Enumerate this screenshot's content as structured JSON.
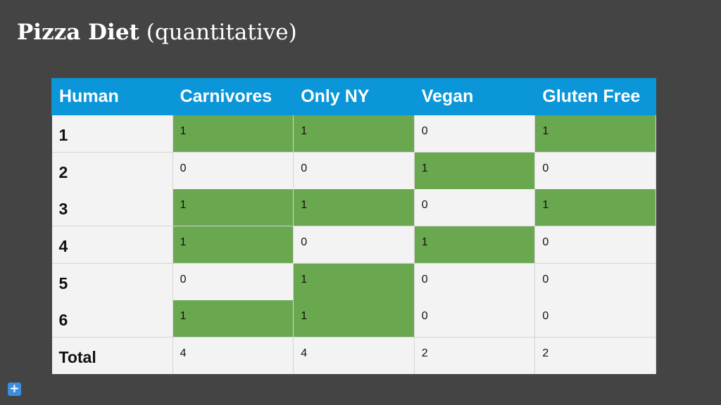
{
  "slide": {
    "title_bold": "Pizza Diet",
    "title_rest": " (quantitative)"
  },
  "table": {
    "headers": [
      "Human",
      "Carnivores",
      "Only NY",
      "Vegan",
      "Gluten Free"
    ],
    "rows": [
      {
        "label": "1",
        "values": [
          "1",
          "1",
          "0",
          "1"
        ]
      },
      {
        "label": "2",
        "values": [
          "0",
          "0",
          "1",
          "0"
        ]
      },
      {
        "label": "3",
        "values": [
          "1",
          "1",
          "0",
          "1"
        ]
      },
      {
        "label": "4",
        "values": [
          "1",
          "0",
          "1",
          "0"
        ]
      },
      {
        "label": "5",
        "values": [
          "0",
          "1",
          "0",
          "0"
        ]
      },
      {
        "label": "6",
        "values": [
          "1",
          "1",
          "0",
          "0"
        ]
      },
      {
        "label": "Total",
        "values": [
          "4",
          "4",
          "2",
          "2"
        ]
      }
    ]
  },
  "colors": {
    "background": "#444444",
    "header": "#0a96d8",
    "highlight": "#6aa84f",
    "cell": "#f3f3f3"
  },
  "controls": {
    "add_icon": "plus-icon",
    "add_label": "+"
  }
}
